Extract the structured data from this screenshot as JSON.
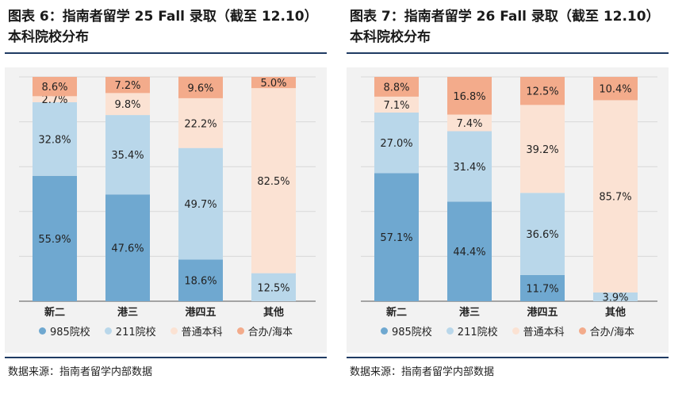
{
  "colors": {
    "c985": "#6fa8d0",
    "c211": "#b9d7ea",
    "cgen": "#fbe2d3",
    "cjoint": "#f3ab8b",
    "rule": "#1f3b63"
  },
  "legend": [
    {
      "label": "985院校",
      "color_key": "c985"
    },
    {
      "label": "211院校",
      "color_key": "c211"
    },
    {
      "label": "普通本科",
      "color_key": "cgen"
    },
    {
      "label": "合办/海本",
      "color_key": "cjoint"
    }
  ],
  "source": "数据来源：指南者留学内部数据",
  "chart_data": [
    {
      "type": "bar",
      "stacked": true,
      "title": "图表 6：指南者留学 25 Fall 录取（截至 12.10）本科院校分布",
      "categories": [
        "新二",
        "港三",
        "港四五",
        "其他"
      ],
      "series": [
        {
          "name": "985院校",
          "values": [
            55.9,
            47.6,
            18.6,
            0
          ]
        },
        {
          "name": "211院校",
          "values": [
            32.8,
            35.4,
            49.7,
            12.5
          ]
        },
        {
          "name": "普通本科",
          "values": [
            2.7,
            9.8,
            22.2,
            82.5
          ]
        },
        {
          "name": "合办/海本",
          "values": [
            8.6,
            7.2,
            9.6,
            5.0
          ]
        }
      ],
      "labels": [
        [
          "55.9%",
          "47.6%",
          "18.6%",
          ""
        ],
        [
          "32.8%",
          "35.4%",
          "49.7%",
          "12.5%"
        ],
        [
          "2.7%",
          "9.8%",
          "22.2%",
          "82.5%"
        ],
        [
          "8.6%",
          "7.2%",
          "9.6%",
          "5.0%"
        ]
      ],
      "ylim": [
        0,
        100
      ],
      "grid": true,
      "legend_position": "bottom"
    },
    {
      "type": "bar",
      "stacked": true,
      "title": "图表 7：指南者留学 26 Fall 录取（截至 12.10）本科院校分布",
      "categories": [
        "新二",
        "港三",
        "港四五",
        "其他"
      ],
      "series": [
        {
          "name": "985院校",
          "values": [
            57.1,
            44.4,
            11.7,
            0
          ]
        },
        {
          "name": "211院校",
          "values": [
            27.0,
            31.4,
            36.6,
            3.9
          ]
        },
        {
          "name": "普通本科",
          "values": [
            7.1,
            7.4,
            39.2,
            85.7
          ]
        },
        {
          "name": "合办/海本",
          "values": [
            8.8,
            16.8,
            12.5,
            10.4
          ]
        }
      ],
      "labels": [
        [
          "57.1%",
          "44.4%",
          "11.7%",
          ""
        ],
        [
          "27.0%",
          "31.4%",
          "36.6%",
          "3.9%"
        ],
        [
          "7.1%",
          "7.4%",
          "39.2%",
          "85.7%"
        ],
        [
          "8.8%",
          "16.8%",
          "12.5%",
          "10.4%"
        ]
      ],
      "ylim": [
        0,
        100
      ],
      "grid": true,
      "legend_position": "bottom"
    }
  ]
}
